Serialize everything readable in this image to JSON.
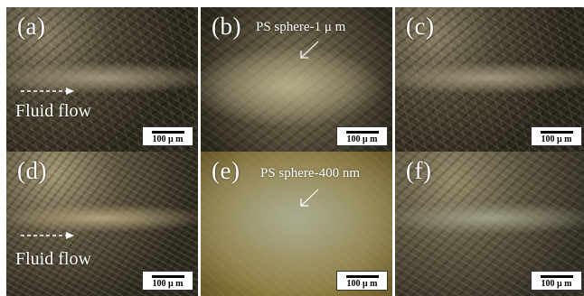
{
  "figure": {
    "panels": [
      {
        "id": "a",
        "label": "(a)",
        "scale": "100 μ m",
        "flow": "Fluid flow",
        "annotation": ""
      },
      {
        "id": "b",
        "label": "(b)",
        "scale": "100 μ m",
        "flow": "",
        "annotation": "PS sphere-1  μ m"
      },
      {
        "id": "c",
        "label": "(c)",
        "scale": "100 μ m",
        "flow": "",
        "annotation": ""
      },
      {
        "id": "d",
        "label": "(d)",
        "scale": "100 μ m",
        "flow": "Fluid flow",
        "annotation": ""
      },
      {
        "id": "e",
        "label": "(e)",
        "scale": "100 μ m",
        "flow": "",
        "annotation": "PS sphere-400 nm"
      },
      {
        "id": "f",
        "label": "(f)",
        "scale": "100 μ m",
        "flow": "",
        "annotation": ""
      }
    ]
  }
}
